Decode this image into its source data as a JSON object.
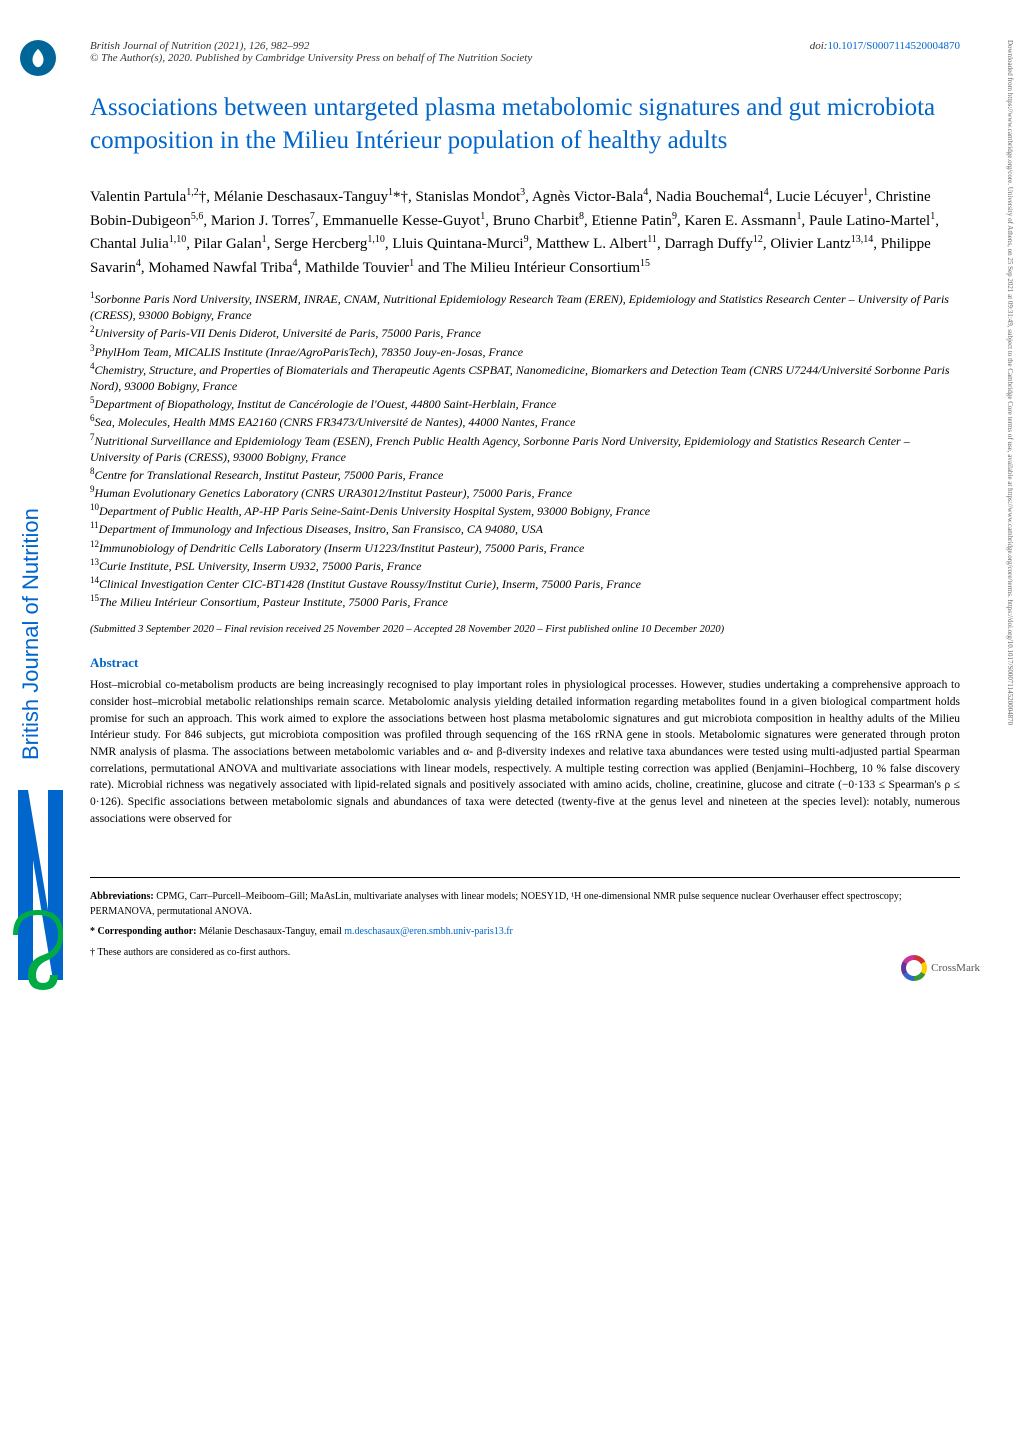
{
  "header": {
    "journal": "British Journal of Nutrition",
    "year_vol_pages": "(2021), 126, 982–992",
    "copyright": "© The Author(s), 2020. Published by Cambridge University Press on behalf of The Nutrition Society",
    "doi_prefix": "doi:",
    "doi": "10.1017/S0007114520004870"
  },
  "title": "Associations between untargeted plasma metabolomic signatures and gut microbiota composition in the Milieu Intérieur population of healthy adults",
  "authors_html": "Valentin Partula<sup>1,2</sup>†, Mélanie Deschasaux-Tanguy<sup>1</sup>*†, Stanislas Mondot<sup>3</sup>, Agnès Victor-Bala<sup>4</sup>, Nadia Bouchemal<sup>4</sup>, Lucie Lécuyer<sup>1</sup>, Christine Bobin-Dubigeon<sup>5,6</sup>, Marion J. Torres<sup>7</sup>, Emmanuelle Kesse-Guyot<sup>1</sup>, Bruno Charbit<sup>8</sup>, Etienne Patin<sup>9</sup>, Karen E. Assmann<sup>1</sup>, Paule Latino-Martel<sup>1</sup>, Chantal Julia<sup>1,10</sup>, Pilar Galan<sup>1</sup>, Serge Hercberg<sup>1,10</sup>, Lluis Quintana-Murci<sup>9</sup>, Matthew L. Albert<sup>11</sup>, Darragh Duffy<sup>12</sup>, Olivier Lantz<sup>13,14</sup>, Philippe Savarin<sup>4</sup>, Mohamed Nawfal Triba<sup>4</sup>, Mathilde Touvier<sup>1</sup> and The Milieu Intérieur Consortium<sup>15</sup>",
  "affiliations": [
    {
      "n": "1",
      "text": "Sorbonne Paris Nord University, INSERM, INRAE, CNAM, Nutritional Epidemiology Research Team (EREN), Epidemiology and Statistics Research Center – University of Paris (CRESS), 93000 Bobigny, France"
    },
    {
      "n": "2",
      "text": "University of Paris-VII Denis Diderot, Université de Paris, 75000 Paris, France"
    },
    {
      "n": "3",
      "text": "PhylHom Team, MICALIS Institute (Inrae/AgroParisTech), 78350 Jouy-en-Josas, France"
    },
    {
      "n": "4",
      "text": "Chemistry, Structure, and Properties of Biomaterials and Therapeutic Agents CSPBAT, Nanomedicine, Biomarkers and Detection Team (CNRS U7244/Université Sorbonne Paris Nord), 93000 Bobigny, France"
    },
    {
      "n": "5",
      "text": "Department of Biopathology, Institut de Cancérologie de l'Ouest, 44800 Saint-Herblain, France"
    },
    {
      "n": "6",
      "text": "Sea, Molecules, Health MMS EA2160 (CNRS FR3473/Université de Nantes), 44000 Nantes, France"
    },
    {
      "n": "7",
      "text": "Nutritional Surveillance and Epidemiology Team (ESEN), French Public Health Agency, Sorbonne Paris Nord University, Epidemiology and Statistics Research Center – University of Paris (CRESS), 93000 Bobigny, France"
    },
    {
      "n": "8",
      "text": "Centre for Translational Research, Institut Pasteur, 75000 Paris, France"
    },
    {
      "n": "9",
      "text": "Human Evolutionary Genetics Laboratory (CNRS URA3012/Institut Pasteur), 75000 Paris, France"
    },
    {
      "n": "10",
      "text": "Department of Public Health, AP-HP Paris Seine-Saint-Denis University Hospital System, 93000 Bobigny, France"
    },
    {
      "n": "11",
      "text": "Department of Immunology and Infectious Diseases, Insitro, San Fransisco, CA 94080, USA"
    },
    {
      "n": "12",
      "text": "Immunobiology of Dendritic Cells Laboratory (Inserm U1223/Institut Pasteur), 75000 Paris, France"
    },
    {
      "n": "13",
      "text": "Curie Institute, PSL University, Inserm U932, 75000 Paris, France"
    },
    {
      "n": "14",
      "text": "Clinical Investigation Center CIC-BT1428 (Institut Gustave Roussy/Institut Curie), Inserm, 75000 Paris, France"
    },
    {
      "n": "15",
      "text": "The Milieu Intérieur Consortium, Pasteur Institute, 75000 Paris, France"
    }
  ],
  "dates": "(Submitted 3 September 2020 – Final revision received 25 November 2020 – Accepted 28 November 2020 – First published online 10 December 2020)",
  "abstract": {
    "heading": "Abstract",
    "body": "Host–microbial co-metabolism products are being increasingly recognised to play important roles in physiological processes. However, studies undertaking a comprehensive approach to consider host–microbial metabolic relationships remain scarce. Metabolomic analysis yielding detailed information regarding metabolites found in a given biological compartment holds promise for such an approach. This work aimed to explore the associations between host plasma metabolomic signatures and gut microbiota composition in healthy adults of the Milieu Intérieur study. For 846 subjects, gut microbiota composition was profiled through sequencing of the 16S rRNA gene in stools. Metabolomic signatures were generated through proton NMR analysis of plasma. The associations between metabolomic variables and α- and β-diversity indexes and relative taxa abundances were tested using multi-adjusted partial Spearman correlations, permutational ANOVA and multivariate associations with linear models, respectively. A multiple testing correction was applied (Benjamini–Hochberg, 10 % false discovery rate). Microbial richness was negatively associated with lipid-related signals and positively associated with amino acids, choline, creatinine, glucose and citrate (−0·133 ≤ Spearman's ρ ≤ 0·126). Specific associations between metabolomic signals and abundances of taxa were detected (twenty-five at the genus level and nineteen at the species level): notably, numerous associations were observed for"
  },
  "footer": {
    "abbreviations_label": "Abbreviations:",
    "abbreviations_text": "CPMG, Carr–Purcell–Meiboom–Gill; MaAsLin, multivariate analyses with linear models; NOESY1D, ¹H one-dimensional NMR pulse sequence nuclear Overhauser effect spectroscopy; PERMANOVA, permutational ANOVA.",
    "corresponding_label": "* Corresponding author:",
    "corresponding_text": "Mélanie Deschasaux-Tanguy, email ",
    "corresponding_email": "m.deschasaux@eren.smbh.univ-paris13.fr",
    "cofirst": "† These authors are considered as co-first authors."
  },
  "sidebar": {
    "text": "British Journal of Nutrition"
  },
  "right_margin": "Downloaded from https://www.cambridge.org/core. University of Athens, on 25 Sep 2021 at 09:31:49, subject to the Cambridge Core terms of use, available at https://www.cambridge.org/core/terms. https://doi.org/10.1017/S0007114520004870",
  "crossmark_label": "CrossMark",
  "colors": {
    "title_blue": "#0066cc",
    "link_blue": "#0066cc",
    "text": "#000000",
    "logo_bg": "#006699"
  },
  "fonts": {
    "body_pt": 11.5,
    "title_pt": 25,
    "authors_pt": 15,
    "affiliations_pt": 12,
    "footnote_pt": 10
  }
}
